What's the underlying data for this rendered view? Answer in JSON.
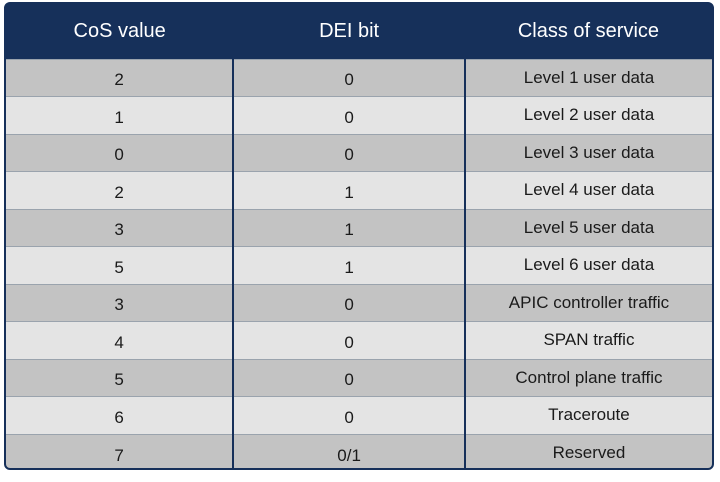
{
  "table": {
    "headers": [
      "CoS value",
      "DEI bit",
      "Class of service"
    ],
    "rows": [
      {
        "cos": "2",
        "dei": "0",
        "service": "Level 1 user data"
      },
      {
        "cos": "1",
        "dei": "0",
        "service": "Level 2 user data"
      },
      {
        "cos": "0",
        "dei": "0",
        "service": "Level 3 user data"
      },
      {
        "cos": "2",
        "dei": "1",
        "service": "Level 4 user data"
      },
      {
        "cos": "3",
        "dei": "1",
        "service": "Level 5 user data"
      },
      {
        "cos": "5",
        "dei": "1",
        "service": "Level 6 user data"
      },
      {
        "cos": "3",
        "dei": "0",
        "service": "APIC controller traffic"
      },
      {
        "cos": "4",
        "dei": "0",
        "service": "SPAN traffic"
      },
      {
        "cos": "5",
        "dei": "0",
        "service": "Control plane traffic"
      },
      {
        "cos": "6",
        "dei": "0",
        "service": "Traceroute"
      },
      {
        "cos": "7",
        "dei": "0/1",
        "service": "Reserved"
      }
    ],
    "colors": {
      "header_bg": "#16305a",
      "row_dark": "#c3c3c3",
      "row_light": "#e4e4e4"
    }
  }
}
